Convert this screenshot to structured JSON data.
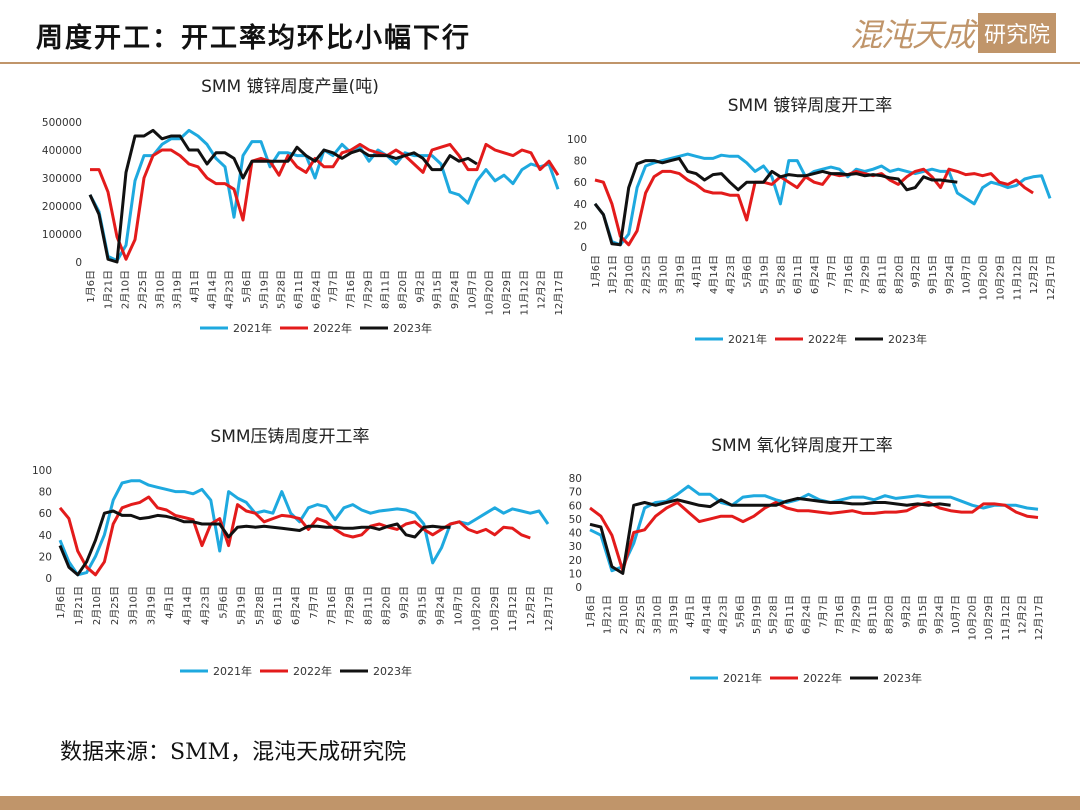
{
  "header": {
    "title": "周度开工：开工率均环比小幅下行",
    "brand_name": "混沌天成",
    "brand_box": "研究院"
  },
  "footer": {
    "source": "数据来源：SMM，混沌天成研究院"
  },
  "colors": {
    "s2021": "#1ea9df",
    "s2022": "#e31b1b",
    "s2023": "#111111",
    "brand": "#c0956a"
  },
  "chart_data": [
    {
      "type": "line",
      "title": "SMM 镀锌周度产量(吨)",
      "ylim": [
        0,
        500000
      ],
      "yticks": [
        "0",
        "100000",
        "200000",
        "300000",
        "400000",
        "500000"
      ],
      "xticks": [
        "1月6日",
        "1月21日",
        "2月10日",
        "2月25日",
        "3月10日",
        "3月19日",
        "4月1日",
        "4月14日",
        "4月23日",
        "5月6日",
        "5月19日",
        "5月28日",
        "6月11日",
        "6月24日",
        "7月7日",
        "7月16日",
        "7月29日",
        "8月11日",
        "8月20日",
        "9月2日",
        "9月15日",
        "9月24日",
        "10月7日",
        "10月20日",
        "10月29日",
        "11月12日",
        "12月2日",
        "12月17日"
      ],
      "legend": [
        "2021年",
        "2022年",
        "2023年"
      ],
      "series": [
        {
          "name": "2021年",
          "values": [
            240000,
            180000,
            20000,
            5000,
            60000,
            290000,
            380000,
            380000,
            420000,
            440000,
            440000,
            470000,
            450000,
            420000,
            370000,
            340000,
            160000,
            380000,
            430000,
            430000,
            340000,
            390000,
            390000,
            380000,
            380000,
            300000,
            400000,
            380000,
            420000,
            390000,
            410000,
            360000,
            400000,
            380000,
            350000,
            390000,
            380000,
            380000,
            380000,
            350000,
            250000,
            240000,
            210000,
            290000,
            330000,
            290000,
            310000,
            280000,
            330000,
            350000,
            340000,
            350000,
            260000
          ]
        },
        {
          "name": "2022年",
          "values": [
            330000,
            330000,
            250000,
            90000,
            10000,
            80000,
            300000,
            380000,
            400000,
            400000,
            380000,
            350000,
            340000,
            300000,
            280000,
            280000,
            260000,
            150000,
            360000,
            370000,
            360000,
            310000,
            380000,
            340000,
            320000,
            370000,
            340000,
            340000,
            390000,
            400000,
            420000,
            400000,
            390000,
            380000,
            400000,
            380000,
            350000,
            320000,
            400000,
            410000,
            420000,
            380000,
            330000,
            330000,
            420000,
            400000,
            390000,
            380000,
            400000,
            390000,
            330000,
            360000,
            310000
          ]
        },
        {
          "name": "2023年",
          "values": [
            240000,
            170000,
            10000,
            0,
            320000,
            450000,
            450000,
            470000,
            440000,
            450000,
            450000,
            400000,
            400000,
            350000,
            390000,
            390000,
            370000,
            300000,
            360000,
            360000,
            360000,
            360000,
            360000,
            410000,
            380000,
            360000,
            400000,
            390000,
            370000,
            390000,
            400000,
            380000,
            380000,
            380000,
            370000,
            380000,
            390000,
            370000,
            330000,
            330000,
            380000,
            360000,
            370000,
            350000
          ]
        }
      ]
    },
    {
      "type": "line",
      "title": "SMM 镀锌周度开工率",
      "ylim": [
        0,
        100
      ],
      "yticks": [
        "0",
        "20",
        "40",
        "60",
        "80",
        "100"
      ],
      "xticks": [
        "1月6日",
        "1月21日",
        "2月10日",
        "2月25日",
        "3月10日",
        "3月19日",
        "4月1日",
        "4月14日",
        "4月23日",
        "5月6日",
        "5月19日",
        "5月28日",
        "6月11日",
        "6月24日",
        "7月7日",
        "7月16日",
        "7月29日",
        "8月11日",
        "8月20日",
        "9月2日",
        "9月15日",
        "9月24日",
        "10月7日",
        "10月20日",
        "10月29日",
        "11月12日",
        "12月2日",
        "12月17日"
      ],
      "legend": [
        "2021年",
        "2022年",
        "2023年"
      ],
      "series": [
        {
          "name": "2021年",
          "values": [
            40,
            30,
            5,
            2,
            12,
            55,
            75,
            78,
            80,
            82,
            84,
            86,
            84,
            82,
            82,
            85,
            84,
            84,
            78,
            70,
            75,
            65,
            40,
            80,
            80,
            65,
            70,
            72,
            74,
            72,
            65,
            72,
            70,
            72,
            75,
            70,
            72,
            70,
            68,
            70,
            72,
            70,
            70,
            50,
            45,
            40,
            55,
            60,
            58,
            55,
            57,
            63,
            65,
            66,
            45
          ]
        },
        {
          "name": "2022年",
          "values": [
            62,
            60,
            40,
            10,
            2,
            15,
            50,
            65,
            70,
            70,
            68,
            62,
            58,
            52,
            50,
            50,
            48,
            48,
            25,
            60,
            60,
            58,
            65,
            60,
            55,
            65,
            60,
            58,
            68,
            66,
            67,
            70,
            68,
            66,
            68,
            62,
            58,
            65,
            70,
            72,
            65,
            55,
            72,
            70,
            67,
            68,
            66,
            68,
            60,
            58,
            62,
            55,
            50
          ]
        },
        {
          "name": "2023年",
          "values": [
            40,
            30,
            3,
            2,
            55,
            77,
            80,
            80,
            78,
            80,
            82,
            70,
            68,
            62,
            67,
            68,
            60,
            53,
            60,
            60,
            60,
            70,
            65,
            67,
            66,
            66,
            68,
            70,
            68,
            68,
            67,
            68,
            66,
            67,
            66,
            64,
            63,
            53,
            55,
            65,
            62,
            62,
            61,
            60
          ]
        }
      ]
    },
    {
      "type": "line",
      "title": "SMM压铸周度开工率",
      "ylim": [
        0,
        100
      ],
      "yticks": [
        "0",
        "20",
        "40",
        "60",
        "80",
        "100"
      ],
      "xticks": [
        "1月6日",
        "1月21日",
        "2月10日",
        "2月25日",
        "3月10日",
        "3月19日",
        "4月1日",
        "4月14日",
        "4月23日",
        "5月6日",
        "5月19日",
        "5月28日",
        "6月11日",
        "6月24日",
        "7月7日",
        "7月16日",
        "7月29日",
        "8月11日",
        "8月20日",
        "9月2日",
        "9月15日",
        "9月24日",
        "10月7日",
        "10月20日",
        "10月29日",
        "11月12日",
        "12月2日",
        "12月17日"
      ],
      "legend": [
        "2021年",
        "2022年",
        "2023年"
      ],
      "series": [
        {
          "name": "2021年",
          "values": [
            35,
            15,
            3,
            5,
            20,
            40,
            72,
            88,
            90,
            90,
            86,
            84,
            82,
            80,
            80,
            78,
            82,
            72,
            25,
            80,
            74,
            70,
            60,
            62,
            60,
            80,
            60,
            52,
            65,
            68,
            66,
            54,
            65,
            68,
            63,
            60,
            62,
            63,
            64,
            63,
            60,
            50,
            14,
            28,
            50,
            52,
            50,
            55,
            60,
            65,
            60,
            64,
            62,
            60,
            62,
            50
          ]
        },
        {
          "name": "2022年",
          "values": [
            65,
            55,
            25,
            10,
            3,
            15,
            50,
            65,
            68,
            70,
            75,
            65,
            63,
            58,
            56,
            54,
            30,
            50,
            55,
            30,
            68,
            62,
            60,
            52,
            55,
            58,
            57,
            55,
            45,
            55,
            52,
            45,
            40,
            38,
            40,
            48,
            50,
            47,
            45,
            50,
            52,
            45,
            40,
            45,
            50,
            52,
            45,
            42,
            45,
            40,
            47,
            46,
            40,
            37
          ]
        },
        {
          "name": "2023年",
          "values": [
            30,
            10,
            3,
            15,
            35,
            60,
            62,
            58,
            58,
            55,
            56,
            58,
            57,
            55,
            52,
            52,
            50,
            50,
            50,
            38,
            47,
            48,
            47,
            48,
            47,
            46,
            45,
            44,
            48,
            48,
            47,
            47,
            46,
            46,
            47,
            47,
            45,
            48,
            50,
            40,
            38,
            47,
            48,
            47,
            47
          ]
        }
      ]
    },
    {
      "type": "line",
      "title": "SMM 氧化锌周度开工率",
      "ylim": [
        0,
        80
      ],
      "yticks": [
        "0",
        "10",
        "20",
        "30",
        "40",
        "50",
        "60",
        "70",
        "80"
      ],
      "xticks": [
        "1月6日",
        "1月21日",
        "2月10日",
        "2月25日",
        "3月10日",
        "3月19日",
        "4月1日",
        "4月14日",
        "4月23日",
        "5月6日",
        "5月19日",
        "5月28日",
        "6月11日",
        "6月24日",
        "7月7日",
        "7月16日",
        "7月29日",
        "8月11日",
        "8月20日",
        "9月2日",
        "9月15日",
        "9月24日",
        "10月7日",
        "10月20日",
        "10月29日",
        "11月12日",
        "12月2日",
        "12月17日"
      ],
      "legend": [
        "2021年",
        "2022年",
        "2023年"
      ],
      "series": [
        {
          "name": "2021年",
          "values": [
            42,
            38,
            12,
            15,
            32,
            58,
            62,
            63,
            68,
            74,
            68,
            68,
            62,
            60,
            66,
            67,
            67,
            64,
            62,
            64,
            68,
            64,
            62,
            64,
            66,
            66,
            64,
            67,
            65,
            66,
            67,
            66,
            66,
            66,
            63,
            60,
            58,
            60,
            60,
            60,
            58,
            57
          ]
        },
        {
          "name": "2022年",
          "values": [
            58,
            52,
            38,
            12,
            40,
            42,
            52,
            58,
            62,
            55,
            48,
            50,
            52,
            52,
            48,
            52,
            58,
            62,
            58,
            56,
            56,
            55,
            54,
            55,
            56,
            54,
            54,
            55,
            55,
            56,
            60,
            62,
            58,
            56,
            55,
            55,
            61,
            61,
            60,
            55,
            52,
            51
          ]
        },
        {
          "name": "2023年",
          "values": [
            46,
            44,
            15,
            10,
            60,
            62,
            60,
            62,
            64,
            62,
            60,
            59,
            64,
            60,
            60,
            60,
            60,
            60,
            63,
            65,
            64,
            63,
            62,
            62,
            61,
            61,
            62,
            62,
            61,
            60,
            61,
            60,
            61,
            60
          ]
        }
      ]
    }
  ]
}
